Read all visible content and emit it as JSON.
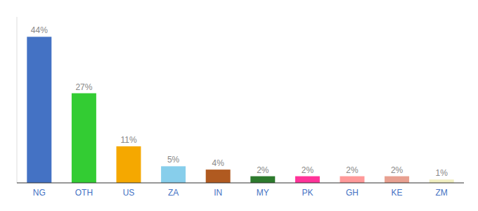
{
  "chart_data": {
    "type": "bar",
    "categories": [
      "NG",
      "OTH",
      "US",
      "ZA",
      "IN",
      "MY",
      "PK",
      "GH",
      "KE",
      "ZM"
    ],
    "values": [
      44,
      27,
      11,
      5,
      4,
      2,
      2,
      2,
      2,
      1
    ],
    "value_labels": [
      "44%",
      "27%",
      "11%",
      "5%",
      "4%",
      "2%",
      "2%",
      "2%",
      "2%",
      "1%"
    ],
    "colors": [
      "#4472c4",
      "#33cc33",
      "#f5a800",
      "#87ceeb",
      "#b05a20",
      "#2d7a2d",
      "#ff3399",
      "#ff9999",
      "#e8a090",
      "#f0eec0"
    ],
    "ylim": [
      0,
      50
    ],
    "data_labels": true,
    "tick_labels": "x"
  }
}
